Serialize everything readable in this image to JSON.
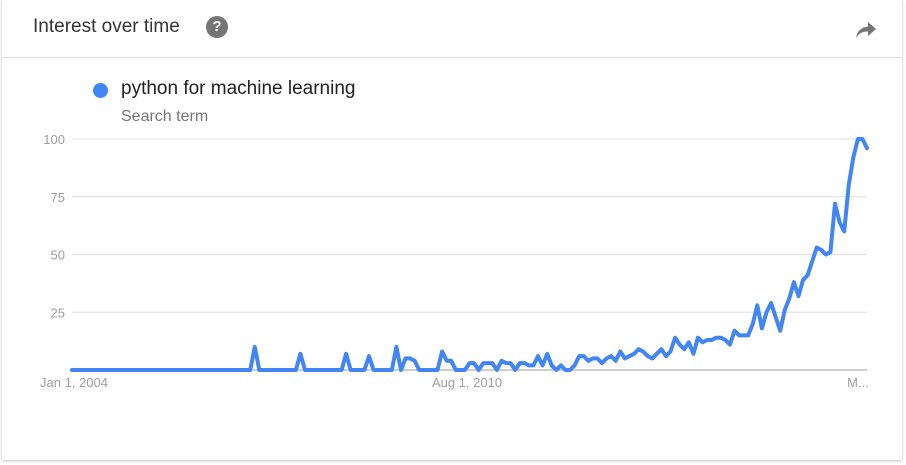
{
  "header": {
    "title": "Interest over time",
    "help_glyph": "?",
    "help_icon": "help-circle-icon",
    "share_icon": "share-arrow-icon"
  },
  "legend": {
    "term": "python for machine learning",
    "subtitle": "Search term",
    "color": "#4285f4"
  },
  "chart_data": {
    "type": "line",
    "title": "Interest over time",
    "xlabel": "",
    "ylabel": "",
    "ylim": [
      0,
      100
    ],
    "yticks": [
      25,
      50,
      75,
      100
    ],
    "xtick_labels": [
      "Jan 1, 2004",
      "Aug 1, 2010",
      "M..."
    ],
    "grid": true,
    "series": [
      {
        "name": "python for machine learning",
        "color": "#4285f4",
        "values": [
          0,
          0,
          0,
          0,
          0,
          0,
          0,
          0,
          0,
          0,
          0,
          0,
          0,
          0,
          0,
          0,
          0,
          0,
          0,
          0,
          0,
          0,
          0,
          0,
          0,
          0,
          0,
          0,
          0,
          0,
          0,
          0,
          0,
          0,
          0,
          0,
          0,
          0,
          0,
          0,
          10,
          0,
          0,
          0,
          0,
          0,
          0,
          0,
          0,
          0,
          7,
          0,
          0,
          0,
          0,
          0,
          0,
          0,
          0,
          0,
          7,
          0,
          0,
          0,
          0,
          6,
          0,
          0,
          0,
          0,
          0,
          10,
          0,
          5,
          5,
          4,
          0,
          0,
          0,
          0,
          0,
          8,
          4,
          4,
          0,
          0,
          0,
          3,
          3,
          0,
          3,
          3,
          3,
          0,
          4,
          3,
          3,
          0,
          3,
          3,
          2,
          2,
          6,
          2,
          7,
          2,
          0,
          2,
          0,
          0,
          2,
          6,
          6,
          4,
          5,
          5,
          3,
          5,
          6,
          4,
          8,
          5,
          6,
          7,
          9,
          8,
          6,
          5,
          7,
          9,
          6,
          8,
          14,
          11,
          9,
          12,
          7,
          14,
          12,
          13,
          13,
          14,
          14,
          13,
          11,
          17,
          15,
          15,
          15,
          20,
          28,
          18,
          25,
          29,
          23,
          17,
          26,
          31,
          38,
          32,
          39,
          41,
          47,
          53,
          52,
          50,
          51,
          72,
          64,
          60,
          80,
          92,
          100,
          100,
          96
        ]
      }
    ]
  }
}
